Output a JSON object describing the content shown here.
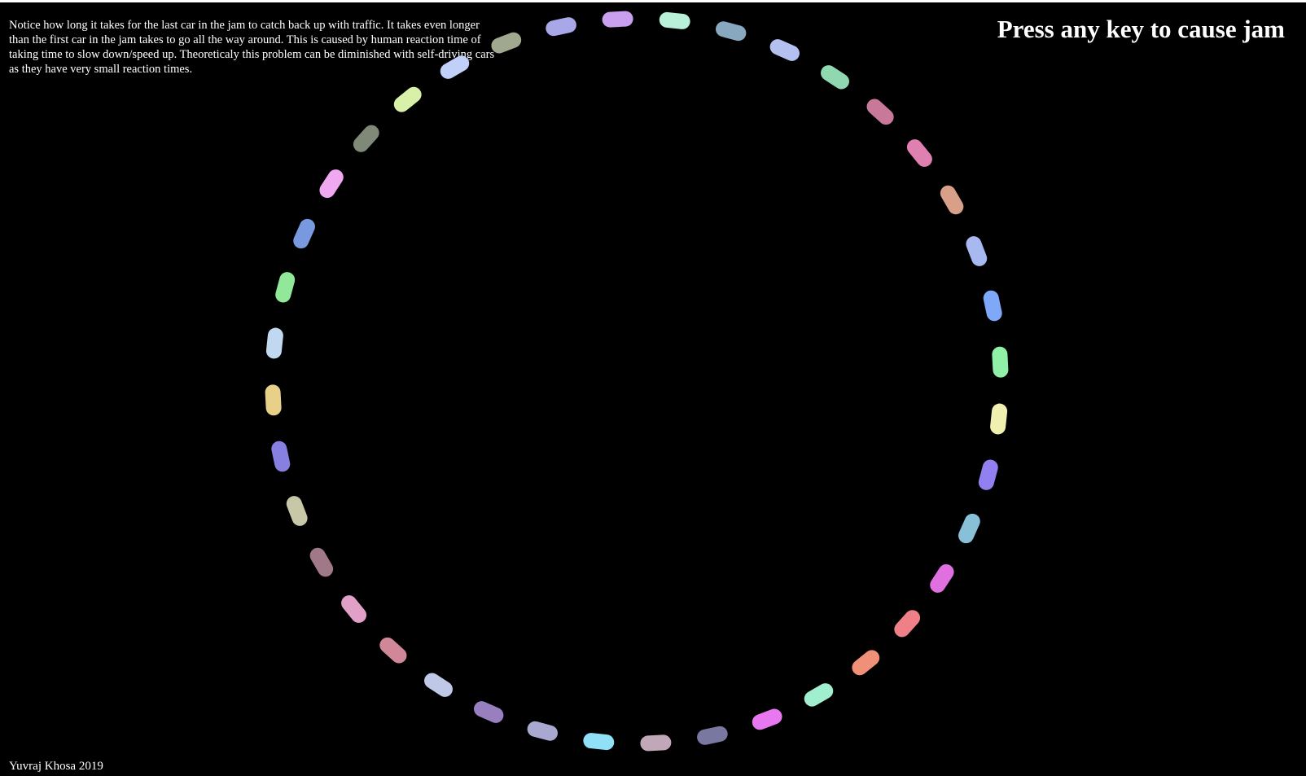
{
  "info_text": "Notice how long it takes for the last car in the jam to catch back up with traffic. It takes even longer than the first car in the jam takes to go all the way around. This is caused by human reaction time of taking time to slow down/speed up. Theoreticaly this problem can be diminished with self-driving cars as they have very small reaction times.",
  "prompt": "Press any key to cause jam",
  "credit": "Yuvraj Khosa 2019",
  "colors": {
    "background": "#000000",
    "text": "#ffffff"
  },
  "cars": [
    {
      "color": "#c8a0ef"
    },
    {
      "color": "#b8f0d8"
    },
    {
      "color": "#88a8c0"
    },
    {
      "color": "#b4c0f0"
    },
    {
      "color": "#90d8b0"
    },
    {
      "color": "#c87898"
    },
    {
      "color": "#e080b0"
    },
    {
      "color": "#d8a088"
    },
    {
      "color": "#a8b8f0"
    },
    {
      "color": "#80a8f8"
    },
    {
      "color": "#90f0a8"
    },
    {
      "color": "#f0f0b0"
    },
    {
      "color": "#9080f0"
    },
    {
      "color": "#88c0d8"
    },
    {
      "color": "#e070e0"
    },
    {
      "color": "#f08088"
    },
    {
      "color": "#f09078"
    },
    {
      "color": "#a0f0d0"
    },
    {
      "color": "#e878f0"
    },
    {
      "color": "#7878a0"
    },
    {
      "color": "#c0a8b8"
    },
    {
      "color": "#90e0f8"
    },
    {
      "color": "#a8a8d0"
    },
    {
      "color": "#9880c0"
    },
    {
      "color": "#c0c8e8"
    },
    {
      "color": "#d08898"
    },
    {
      "color": "#e0a0c8"
    },
    {
      "color": "#a07888"
    },
    {
      "color": "#c8c8a8"
    },
    {
      "color": "#8880e0"
    },
    {
      "color": "#e8d088"
    },
    {
      "color": "#c0d8f0"
    },
    {
      "color": "#90e898"
    },
    {
      "color": "#7898e0"
    },
    {
      "color": "#f0a8f0"
    },
    {
      "color": "#808878"
    },
    {
      "color": "#d8f0a8"
    },
    {
      "color": "#c0d0f8"
    },
    {
      "color": "#a0a890"
    },
    {
      "color": "#a8a8e8"
    }
  ]
}
